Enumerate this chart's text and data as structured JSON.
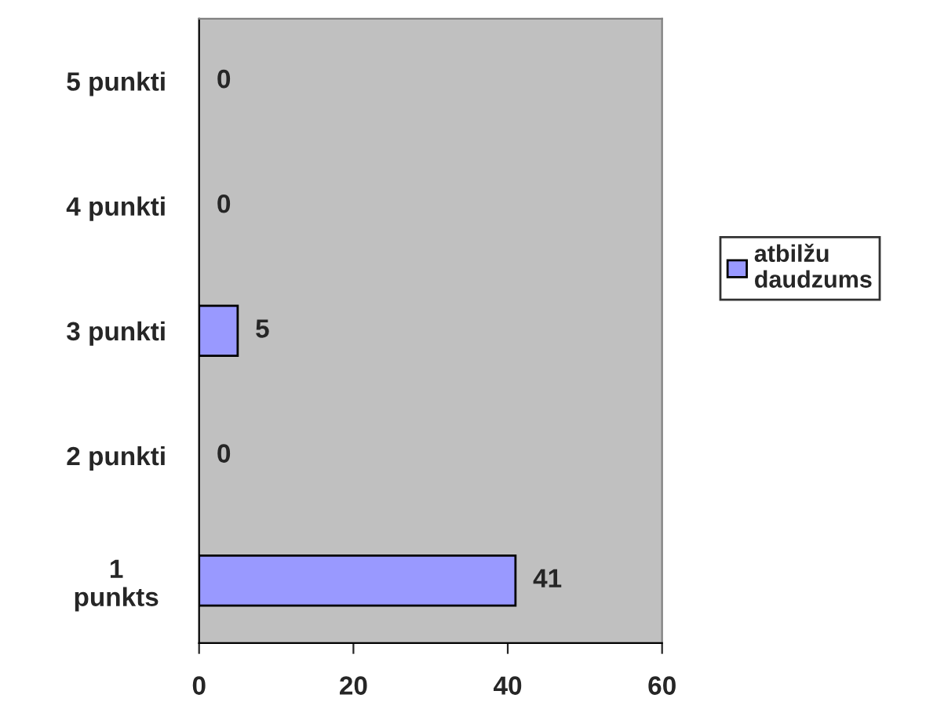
{
  "chart_data": {
    "type": "bar",
    "orientation": "horizontal",
    "categories": [
      "5 punkti",
      "4 punkti",
      "3 punkti",
      "2 punkti",
      "1\npunkts"
    ],
    "series": [
      {
        "name": "atbilžu\ndaudzums",
        "color": "#9999ff",
        "values": [
          0,
          0,
          5,
          0,
          41
        ]
      }
    ],
    "xlim": [
      0,
      60
    ],
    "xticks": [
      0,
      20,
      40,
      60
    ],
    "grid": false,
    "legend": "right",
    "data_labels": true
  }
}
